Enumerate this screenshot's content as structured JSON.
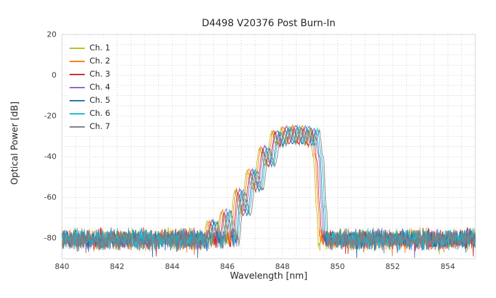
{
  "chart_data": {
    "type": "line",
    "title": "D4498 V20376 Post Burn-In",
    "xlabel": "Wavelength [nm]",
    "ylabel": "Optical Power [dB]",
    "xlim": [
      840,
      855
    ],
    "ylim": [
      -90,
      20
    ],
    "xticks": [
      840,
      842,
      844,
      846,
      848,
      850,
      852,
      854
    ],
    "yticks": [
      20,
      0,
      -20,
      -40,
      -60,
      -80
    ],
    "grid": {
      "on": true,
      "x_step": 0.5,
      "y_step": 5,
      "color": "#c9c9c9",
      "dashed": true
    },
    "legend_position": "upper-left",
    "series": [
      {
        "name": "Ch. 1",
        "color": "#bcbd22",
        "shift_nm": -0.18,
        "peak_adjust_db": 0.0
      },
      {
        "name": "Ch. 2",
        "color": "#ff7f0e",
        "shift_nm": -0.12,
        "peak_adjust_db": 0.6
      },
      {
        "name": "Ch. 3",
        "color": "#d62728",
        "shift_nm": -0.06,
        "peak_adjust_db": -0.6
      },
      {
        "name": "Ch. 4",
        "color": "#9467bd",
        "shift_nm": 0.0,
        "peak_adjust_db": 0.9
      },
      {
        "name": "Ch. 5",
        "color": "#1f77b4",
        "shift_nm": 0.06,
        "peak_adjust_db": -0.4
      },
      {
        "name": "Ch. 6",
        "color": "#17becf",
        "shift_nm": 0.12,
        "peak_adjust_db": 0.3
      },
      {
        "name": "Ch. 7",
        "color": "#7f7f7f",
        "shift_nm": 0.18,
        "peak_adjust_db": -0.2
      }
    ],
    "noise_floor_db": -80.5,
    "noise_amplitude_db": [
      2,
      6
    ],
    "signal_envelope_points": [
      [
        845.2,
        -90
      ],
      [
        845.45,
        -72
      ],
      [
        845.7,
        -88
      ],
      [
        845.95,
        -67
      ],
      [
        846.2,
        -85
      ],
      [
        846.45,
        -57
      ],
      [
        846.65,
        -68
      ],
      [
        846.9,
        -47
      ],
      [
        847.1,
        -56
      ],
      [
        847.35,
        -36
      ],
      [
        847.55,
        -44
      ],
      [
        847.8,
        -28
      ],
      [
        847.95,
        -34
      ],
      [
        848.15,
        -26
      ],
      [
        848.3,
        -33
      ],
      [
        848.5,
        -25.5
      ],
      [
        848.65,
        -33
      ],
      [
        848.85,
        -26
      ],
      [
        849.0,
        -34
      ],
      [
        849.15,
        -27
      ],
      [
        849.3,
        -40
      ],
      [
        849.42,
        -65
      ],
      [
        849.5,
        -90
      ]
    ],
    "sample_step_nm": 0.015,
    "random_seed": 42
  }
}
